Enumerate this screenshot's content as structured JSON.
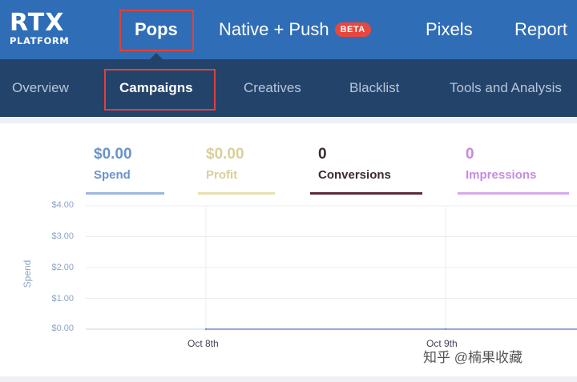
{
  "logo": {
    "main": "RTX",
    "sub": "PLATFORM"
  },
  "top_nav": {
    "items": [
      {
        "label": "Pops",
        "active": true
      },
      {
        "label": "Native + Push",
        "badge": "BETA"
      },
      {
        "label": "Pixels"
      },
      {
        "label": "Report"
      }
    ]
  },
  "sub_nav": {
    "items": [
      {
        "label": "Overview"
      },
      {
        "label": "Campaigns",
        "active": true
      },
      {
        "label": "Creatives"
      },
      {
        "label": "Blacklist"
      },
      {
        "label": "Tools and Analysis"
      }
    ]
  },
  "metrics": [
    {
      "value": "$0.00",
      "label": "Spend",
      "color": "#6b93c9"
    },
    {
      "value": "$0.00",
      "label": "Profit",
      "color": "#d8d09a"
    },
    {
      "value": "0",
      "label": "Conversions",
      "color": "#5a2c3a"
    },
    {
      "value": "0",
      "label": "Impressions",
      "color": "#c78be0"
    }
  ],
  "chart_data": {
    "type": "line",
    "ylabel": "Spend",
    "yticks": [
      "$4.00",
      "$3.00",
      "$2.00",
      "$1.00",
      "$0.00"
    ],
    "ylim": [
      0,
      4
    ],
    "x": [
      "Oct 8th",
      "Oct 9th"
    ],
    "series": [
      {
        "values": [
          0,
          0
        ]
      }
    ],
    "grid": true
  },
  "watermark": "知乎 @楠果收藏",
  "colors": {
    "top_nav": "#2f6db7",
    "sub_nav": "#23436a",
    "highlight": "#e0413a",
    "beta": "#e8473e"
  }
}
